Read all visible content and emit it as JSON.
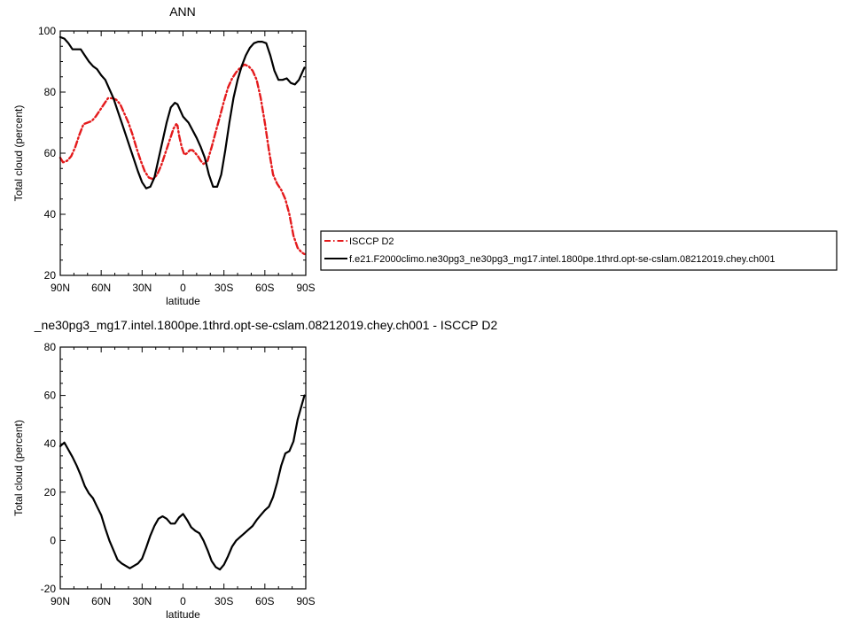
{
  "chart_data": [
    {
      "type": "line",
      "title": "ANN",
      "xlabel": "latitude",
      "ylabel": "Total cloud (percent)",
      "xlim": [
        90,
        -90
      ],
      "ylim": [
        20,
        100
      ],
      "xticks": [
        90,
        60,
        30,
        0,
        -30,
        -60,
        -90
      ],
      "xtick_labels": [
        "90N",
        "60N",
        "30N",
        "0",
        "30S",
        "60S",
        "90S"
      ],
      "yticks": [
        20,
        40,
        60,
        80,
        100
      ],
      "ytick_labels": [
        "20",
        "40",
        "60",
        "80",
        "100"
      ],
      "grid": false,
      "legend": "right",
      "series": [
        {
          "name": "ISCCP D2",
          "color": "#e41a1c",
          "style": "dashed",
          "x": [
            90,
            88,
            85,
            82,
            79,
            76,
            73,
            70,
            67,
            64,
            61,
            58,
            55,
            52,
            49,
            46,
            43,
            40,
            37,
            34,
            31,
            28,
            25,
            22,
            19,
            16,
            13,
            10,
            7,
            5,
            4,
            3,
            1,
            -1,
            -3,
            -5,
            -7,
            -9,
            -11,
            -13,
            -15,
            -18,
            -21,
            -24,
            -27,
            -30,
            -33,
            -36,
            -39,
            -42,
            -45,
            -48,
            -51,
            -54,
            -57,
            -60,
            -63,
            -66,
            -69,
            -72,
            -75,
            -78,
            -81,
            -84,
            -87,
            -89
          ],
          "y": [
            58.5,
            57,
            57.5,
            59,
            62,
            66,
            69.5,
            70,
            70.5,
            72,
            74,
            76,
            78,
            78,
            77.5,
            76,
            73,
            70,
            66,
            61.5,
            57.5,
            54,
            52,
            51.5,
            53,
            56,
            60,
            64,
            68,
            69.5,
            69,
            66,
            62,
            59.5,
            60,
            61,
            61,
            60,
            59,
            57.5,
            56.5,
            57.5,
            62,
            67,
            72,
            77,
            81.5,
            84.5,
            86.5,
            88,
            89,
            88.5,
            87,
            84,
            78,
            70,
            61,
            53,
            50,
            48,
            45,
            40,
            33,
            29,
            27.5,
            27
          ]
        },
        {
          "name": "f.e21.F2000climo.ne30pg3_ne30pg3_mg17.intel.1800pe.1thrd.opt-se-cslam.08212019.chey.ch001",
          "color": "#000000",
          "style": "solid",
          "x": [
            90,
            87,
            84,
            81,
            78,
            75,
            72,
            69,
            66,
            63,
            60,
            57,
            54,
            51,
            48,
            45,
            42,
            39,
            36,
            33,
            30,
            27,
            24,
            21,
            18,
            15,
            12,
            9,
            6,
            4,
            2,
            0,
            -2,
            -4,
            -7,
            -10,
            -13,
            -16,
            -19,
            -22,
            -25,
            -28,
            -31,
            -34,
            -37,
            -40,
            -43,
            -46,
            -49,
            -52,
            -55,
            -58,
            -61,
            -64,
            -67,
            -70,
            -73,
            -76,
            -79,
            -82,
            -85,
            -88,
            -89
          ],
          "y": [
            98,
            97.5,
            96,
            94,
            94,
            94,
            92,
            90,
            88.5,
            87.5,
            85.5,
            84,
            81,
            78,
            74,
            70,
            66,
            62,
            58,
            54,
            50.5,
            48.5,
            49,
            52,
            58,
            64,
            70,
            75,
            76.5,
            76,
            74,
            72,
            71,
            70,
            67.5,
            65,
            62,
            58.5,
            53,
            49,
            49,
            53,
            61,
            70,
            78,
            84,
            88.5,
            92,
            94.5,
            96,
            96.5,
            96.5,
            96,
            92,
            87,
            84,
            84,
            84.5,
            83,
            82.5,
            84,
            87,
            88
          ]
        }
      ]
    },
    {
      "type": "line",
      "title": "_ne30pg3_mg17.intel.1800pe.1thrd.opt-se-cslam.08212019.chey.ch001 - ISCCP D2",
      "xlabel": "latitude",
      "ylabel": "Total cloud (percent)",
      "xlim": [
        90,
        -90
      ],
      "ylim": [
        -20,
        80
      ],
      "xticks": [
        90,
        60,
        30,
        0,
        -30,
        -60,
        -90
      ],
      "xtick_labels": [
        "90N",
        "60N",
        "30N",
        "0",
        "30S",
        "60S",
        "90S"
      ],
      "yticks": [
        -20,
        0,
        20,
        40,
        60,
        80
      ],
      "ytick_labels": [
        "-20",
        "0",
        "20",
        "40",
        "60",
        "80"
      ],
      "grid": false,
      "series": [
        {
          "color": "#000000",
          "style": "solid",
          "x": [
            90,
            87,
            84,
            81,
            78,
            75,
            72,
            69,
            66,
            63,
            60,
            57,
            54,
            51,
            48,
            45,
            42,
            39,
            36,
            33,
            30,
            27,
            24,
            21,
            18,
            15,
            12,
            9,
            6,
            3,
            0,
            -3,
            -6,
            -9,
            -12,
            -15,
            -18,
            -21,
            -24,
            -27,
            -30,
            -33,
            -36,
            -39,
            -42,
            -45,
            -48,
            -51,
            -54,
            -57,
            -60,
            -63,
            -66,
            -69,
            -72,
            -75,
            -78,
            -81,
            -84,
            -87,
            -89
          ],
          "y": [
            39,
            40.5,
            37.5,
            34.5,
            31,
            27,
            22.5,
            19.5,
            17.5,
            14,
            10.5,
            5,
            0,
            -4,
            -8,
            -9.5,
            -10.5,
            -11.5,
            -10.5,
            -9.5,
            -7.5,
            -3,
            2,
            6,
            9,
            10,
            9,
            7,
            7,
            9.5,
            11,
            8.5,
            5.5,
            4,
            3,
            0,
            -4,
            -8.5,
            -11,
            -12,
            -10,
            -6.5,
            -2.5,
            0,
            1.5,
            3,
            4.5,
            6,
            8.5,
            10.5,
            12.5,
            14,
            18,
            24,
            31,
            36,
            37,
            41,
            50,
            56,
            60
          ]
        }
      ]
    }
  ]
}
